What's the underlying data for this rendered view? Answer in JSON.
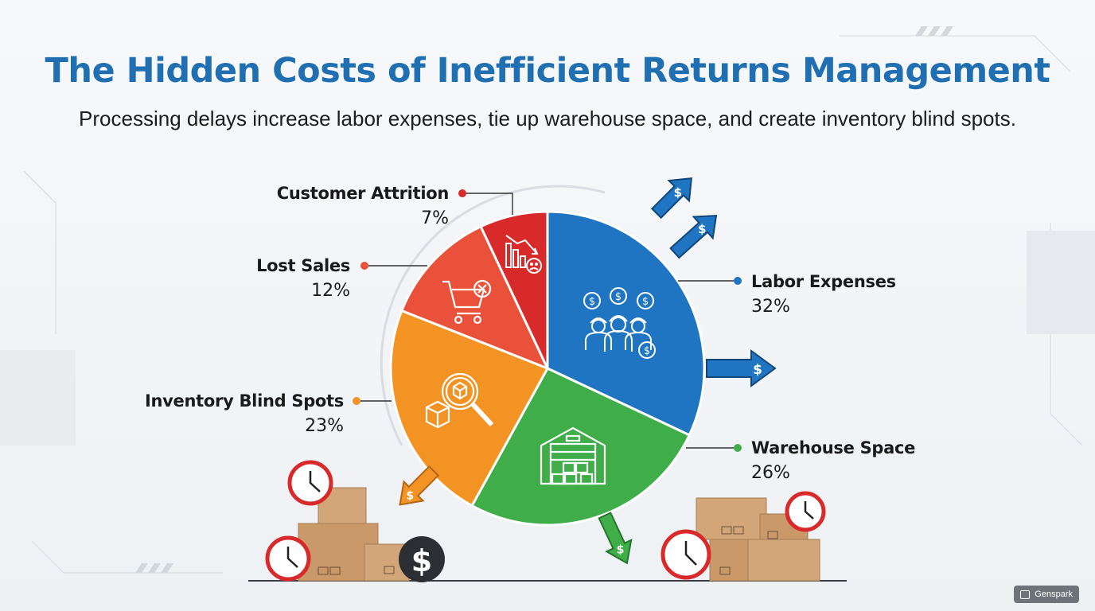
{
  "header": {
    "title": "The Hidden Costs of Inefficient Returns Management",
    "subtitle": "Processing delays increase labor expenses, tie up warehouse space, and create inventory blind spots."
  },
  "chart_data": {
    "type": "pie",
    "title": "",
    "slices": [
      {
        "name": "Labor Expenses",
        "value": 32,
        "label": "32%",
        "color": "#1f75c1",
        "icon": "labor-workers-dollar-icon"
      },
      {
        "name": "Warehouse Space",
        "value": 26,
        "label": "26%",
        "color": "#3fae49",
        "icon": "warehouse-icon"
      },
      {
        "name": "Inventory Blind Spots",
        "value": 23,
        "label": "23%",
        "color": "#f39324",
        "icon": "magnifier-box-icon"
      },
      {
        "name": "Lost Sales",
        "value": 12,
        "label": "12%",
        "color": "#e9513a",
        "icon": "cart-cancel-icon"
      },
      {
        "name": "Customer Attrition",
        "value": 7,
        "label": "7%",
        "color": "#d82a2a",
        "icon": "declining-chart-sad-icon"
      }
    ],
    "start_angle": "top, clockwise",
    "legend": "callout labels around the pie"
  },
  "watermark": {
    "text": "Genspark"
  }
}
